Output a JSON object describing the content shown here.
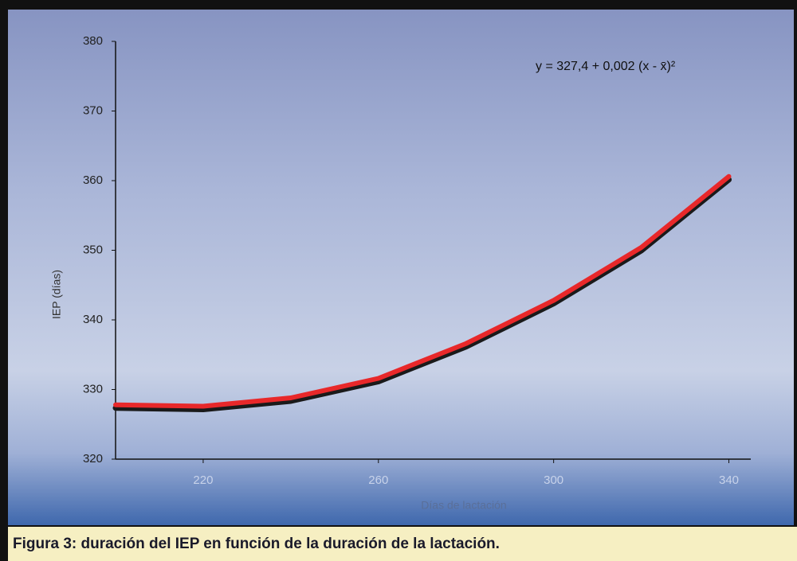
{
  "chart_data": {
    "type": "line",
    "caption": "Figura 3: duración del IEP en función de la duración de la lactación.",
    "annotation": "y = 327,4 + 0,002 (x - x̄)²",
    "xlabel": "Días de lactación",
    "ylabel": "IEP (días)",
    "x": [
      200,
      220,
      240,
      260,
      280,
      300,
      320,
      340
    ],
    "series": [
      {
        "color": "#e8282a",
        "values": [
          327.8,
          327.6,
          328.8,
          331.6,
          336.6,
          342.8,
          350.4,
          360.6
        ]
      }
    ],
    "xlim": [
      200,
      345
    ],
    "xticks": [
      220,
      260,
      300,
      340
    ],
    "ylim": [
      320,
      380
    ],
    "yticks": [
      320,
      330,
      340,
      350,
      360,
      370,
      380
    ]
  }
}
